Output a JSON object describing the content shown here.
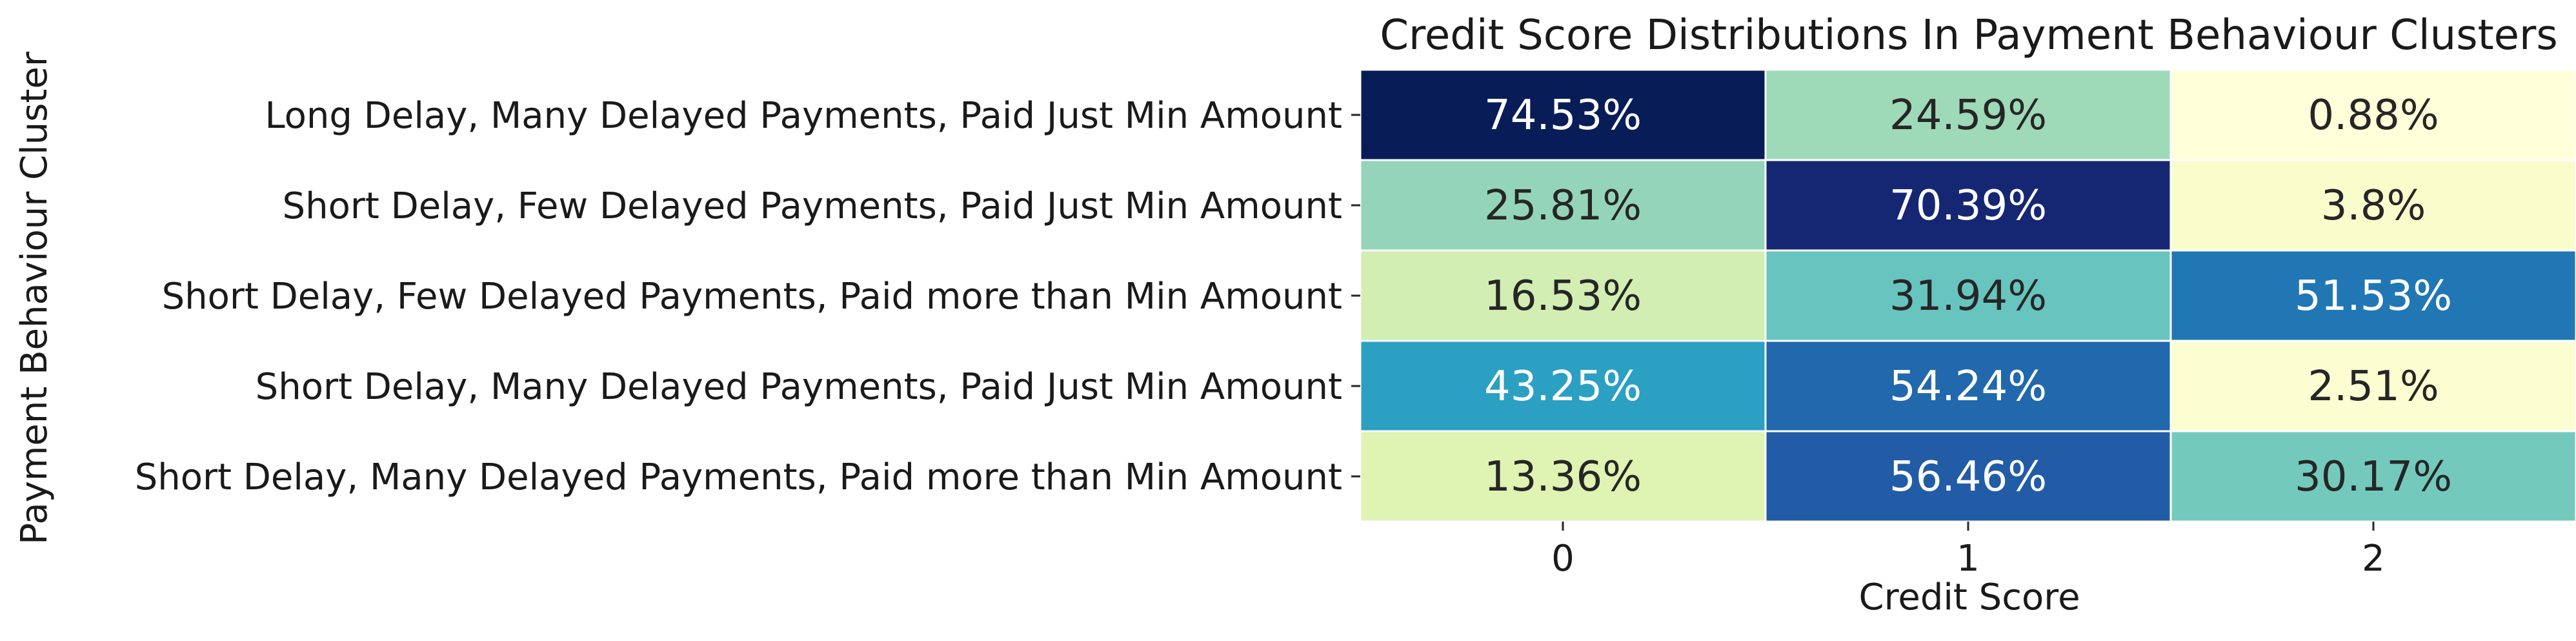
{
  "chart_data": {
    "type": "heatmap",
    "title": "Credit Score Distributions In Payment Behaviour Clusters",
    "xlabel": "Credit Score",
    "ylabel": "Payment Behaviour Cluster",
    "x_categories": [
      "0",
      "1",
      "2"
    ],
    "y_categories": [
      "Long Delay, Many Delayed Payments, Paid Just Min Amount",
      "Short Delay, Few Delayed Payments, Paid Just Min Amount",
      "Short Delay, Few Delayed Payments, Paid more than Min Amount",
      "Short Delay, Many Delayed Payments, Paid Just Min Amount",
      "Short Delay, Many Delayed Payments, Paid more than Min Amount"
    ],
    "values": [
      [
        74.53,
        24.59,
        0.88
      ],
      [
        25.81,
        70.39,
        3.8
      ],
      [
        16.53,
        31.94,
        51.53
      ],
      [
        43.25,
        54.24,
        2.51
      ],
      [
        13.36,
        56.46,
        30.17
      ]
    ],
    "cell_labels": [
      [
        "74.53%",
        "24.59%",
        "0.88%"
      ],
      [
        "25.81%",
        "70.39%",
        "3.8%"
      ],
      [
        "16.53%",
        "31.94%",
        "51.53%"
      ],
      [
        "43.25%",
        "54.24%",
        "2.51%"
      ],
      [
        "13.36%",
        "56.46%",
        "30.17%"
      ]
    ],
    "colormap": "YlGnBu",
    "grid": false,
    "colorbar": false
  }
}
